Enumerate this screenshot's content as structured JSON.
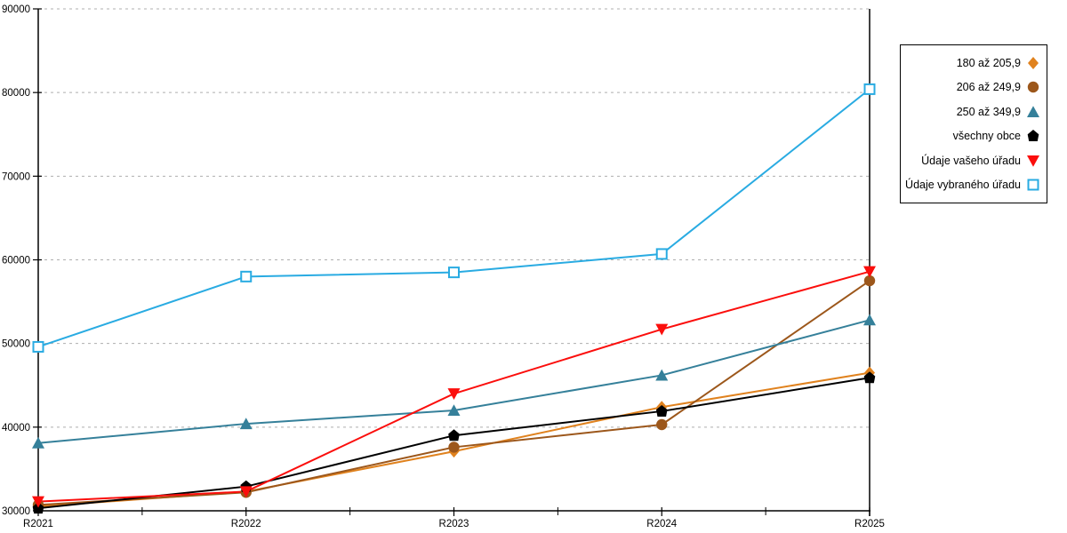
{
  "chart_data": {
    "type": "line",
    "title": "",
    "xlabel": "",
    "ylabel": "",
    "categories": [
      "R2021",
      "R2022",
      "R2023",
      "R2024",
      "R2025"
    ],
    "series": [
      {
        "name": "180 až 205,9",
        "marker": "diamond",
        "color": "#E0821E",
        "values": [
          30500,
          32300,
          37100,
          42400,
          46500
        ]
      },
      {
        "name": "206 až 249,9",
        "marker": "circle",
        "color": "#9C571B",
        "values": [
          30700,
          32200,
          37600,
          40300,
          57500
        ]
      },
      {
        "name": "250 až 349,9",
        "marker": "triangle-up",
        "color": "#35809A",
        "values": [
          38100,
          40400,
          42000,
          46200,
          52800
        ]
      },
      {
        "name": "všechny obce",
        "marker": "pentagon",
        "color": "#000000",
        "values": [
          30300,
          32900,
          39000,
          41900,
          45900
        ]
      },
      {
        "name": "Údaje vašeho úřadu",
        "marker": "triangle-down",
        "color": "#FB0E0C",
        "values": [
          31100,
          32300,
          44000,
          51700,
          58600
        ]
      },
      {
        "name": "Údaje vybraného úřadu",
        "marker": "open-square",
        "color": "#29ABE2",
        "values": [
          49600,
          58000,
          58500,
          60700,
          80400
        ]
      }
    ],
    "ylim": [
      30000,
      90000
    ],
    "ytick_step": 10000,
    "y_tick_labels": [
      "30000",
      "40000",
      "50000",
      "60000",
      "70000",
      "80000",
      "90000"
    ],
    "grid": "horizontal-dotted",
    "legend_position": "top-right"
  },
  "colors": {
    "grid": "#AFAFAF",
    "axis": "#000000",
    "background": "#FFFFFF"
  }
}
